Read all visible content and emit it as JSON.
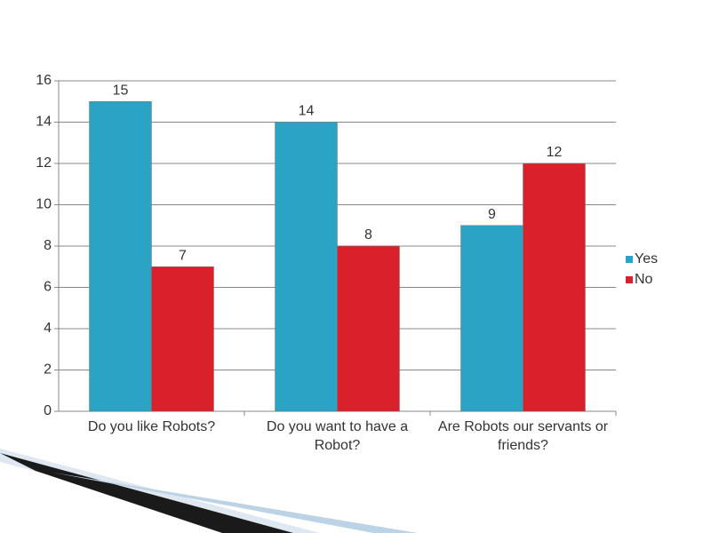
{
  "chart_data": {
    "type": "bar",
    "categories": [
      "Do you like Robots?",
      "Do you want to have a Robot?",
      "Are Robots our servants or friends?"
    ],
    "series": [
      {
        "name": "Yes",
        "color": "#2ba3c4",
        "values": [
          15,
          14,
          9
        ]
      },
      {
        "name": "No",
        "color": "#d9202b",
        "values": [
          7,
          8,
          12
        ]
      }
    ],
    "ylim": [
      0,
      16
    ],
    "yticks": [
      0,
      2,
      4,
      6,
      8,
      10,
      12,
      14,
      16
    ],
    "grid": true,
    "legend": "right"
  }
}
